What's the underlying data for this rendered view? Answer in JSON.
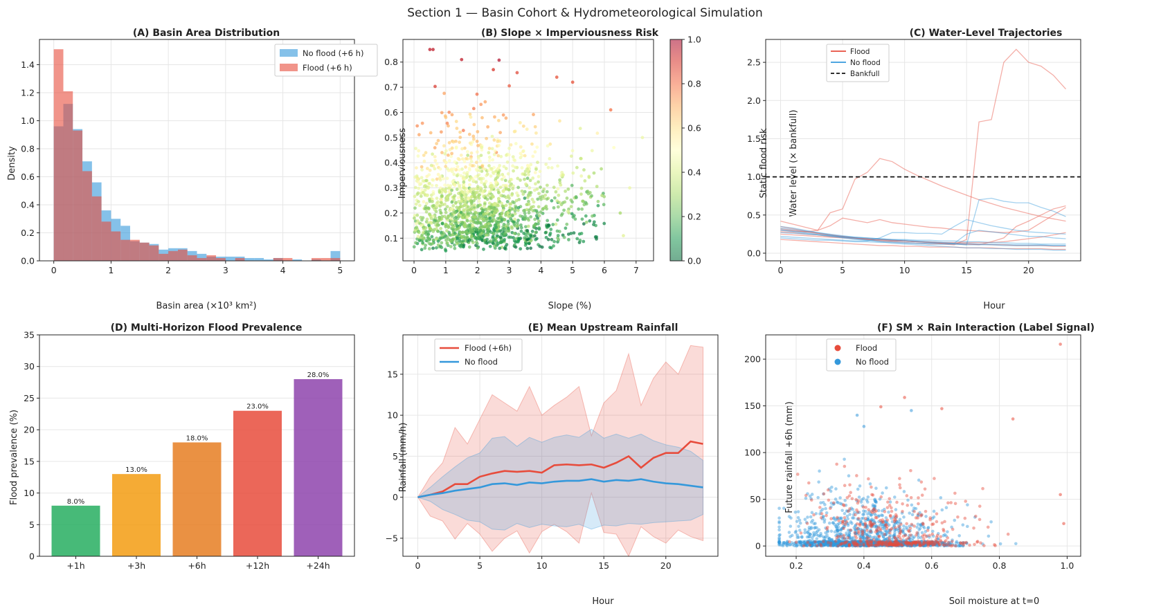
{
  "suptitle": "Section 1 — Basin Cohort & Hydrometeorological Simulation",
  "colors": {
    "no_flood": "#3498db",
    "flood": "#e74c3c",
    "bankfull": "#111111",
    "grid": "#e6e6e6"
  },
  "chart_data": [
    {
      "id": "A",
      "type": "bar",
      "subtype": "histogram",
      "title": "(A) Basin Area Distribution",
      "xlabel": "Basin area (×10³ km²)",
      "ylabel": "Density",
      "xlim": [
        -0.25,
        5.25
      ],
      "ylim": [
        0,
        1.58
      ],
      "xticks": [
        "0",
        "1",
        "2",
        "3",
        "4",
        "5"
      ],
      "yticks": [
        "0.0",
        "0.2",
        "0.4",
        "0.6",
        "0.8",
        "1.0",
        "1.2",
        "1.4"
      ],
      "legend_position": "top-right",
      "bin_edges": [
        0,
        0.167,
        0.333,
        0.5,
        0.667,
        0.833,
        1.0,
        1.167,
        1.333,
        1.5,
        1.667,
        1.833,
        2.0,
        2.167,
        2.333,
        2.5,
        2.667,
        2.833,
        3.0,
        3.167,
        3.333,
        3.5,
        3.667,
        3.833,
        4.0,
        4.167,
        4.333,
        4.5,
        4.667,
        4.833,
        5.0
      ],
      "series": [
        {
          "name": "No flood (+6 h)",
          "values": [
            0.96,
            1.12,
            0.94,
            0.71,
            0.56,
            0.36,
            0.3,
            0.25,
            0.14,
            0.13,
            0.12,
            0.08,
            0.09,
            0.09,
            0.07,
            0.05,
            0.03,
            0.03,
            0.03,
            0.03,
            0.02,
            0.02,
            0.01,
            0.02,
            0.0,
            0.01,
            0.0,
            0.01,
            0.0,
            0.07
          ]
        },
        {
          "name": "Flood (+6 h)",
          "values": [
            1.51,
            1.21,
            0.93,
            0.64,
            0.46,
            0.28,
            0.21,
            0.15,
            0.15,
            0.13,
            0.11,
            0.05,
            0.07,
            0.08,
            0.04,
            0.02,
            0.04,
            0.02,
            0.0,
            0.02,
            0.0,
            0.0,
            0.0,
            0.02,
            0.02,
            0.0,
            0.0,
            0.02,
            0.02,
            0.02
          ]
        }
      ]
    },
    {
      "id": "B",
      "type": "scatter",
      "title": "(B) Slope × Imperviousness Risk",
      "xlabel": "Slope (%)",
      "ylabel": "Imperviousness",
      "colorbar_label": "Static flood risk",
      "colormap": "RdYlGn_r",
      "xlim": [
        -0.35,
        7.55
      ],
      "ylim": [
        0.01,
        0.89
      ],
      "clim": [
        0,
        1
      ],
      "xticks": [
        "0",
        "1",
        "2",
        "3",
        "4",
        "5",
        "6",
        "7"
      ],
      "yticks": [
        "0.1",
        "0.2",
        "0.3",
        "0.4",
        "0.5",
        "0.6",
        "0.7",
        "0.8"
      ],
      "colorbar_ticks": [
        "0.0",
        "0.2",
        "0.4",
        "0.6",
        "0.8",
        "1.0"
      ],
      "n_points": 1600,
      "points_sample": [
        {
          "x": 0.5,
          "y": 0.85,
          "risk": 0.95
        },
        {
          "x": 0.6,
          "y": 0.85,
          "risk": 0.95
        },
        {
          "x": 1.5,
          "y": 0.81,
          "risk": 0.95
        },
        {
          "x": 2.5,
          "y": 0.77,
          "risk": 0.9
        },
        {
          "x": 4.5,
          "y": 0.74,
          "risk": 0.85
        },
        {
          "x": 5.0,
          "y": 0.72,
          "risk": 0.85
        },
        {
          "x": 6.2,
          "y": 0.61,
          "risk": 0.8
        },
        {
          "x": 6.3,
          "y": 0.46,
          "risk": 0.5
        },
        {
          "x": 6.5,
          "y": 0.2,
          "risk": 0.3
        },
        {
          "x": 6.8,
          "y": 0.3,
          "risk": 0.45
        },
        {
          "x": 7.2,
          "y": 0.5,
          "risk": 0.45
        },
        {
          "x": 6.6,
          "y": 0.11,
          "risk": 0.42
        },
        {
          "x": 1.0,
          "y": 0.05,
          "risk": 0.1
        }
      ]
    },
    {
      "id": "C",
      "type": "line",
      "title": "(C) Water-Level Trajectories",
      "xlabel": "Hour",
      "ylabel": "Water level (× bankfull)",
      "xlim": [
        -1.2,
        24.2
      ],
      "ylim": [
        -0.1,
        2.8
      ],
      "xticks": [
        "0",
        "5",
        "10",
        "15",
        "20"
      ],
      "yticks": [
        "0.0",
        "0.5",
        "1.0",
        "1.5",
        "2.0",
        "2.5"
      ],
      "bankfull": 1.0,
      "legend_position": "top-left",
      "legend": [
        "Flood",
        "No flood",
        "Bankfull"
      ],
      "x": [
        0,
        1,
        2,
        3,
        4,
        5,
        6,
        7,
        8,
        9,
        10,
        11,
        12,
        13,
        14,
        15,
        16,
        17,
        18,
        19,
        20,
        21,
        22,
        23
      ],
      "series": [
        {
          "group": "flood",
          "values": [
            0.42,
            0.38,
            0.34,
            0.3,
            0.53,
            0.58,
            0.97,
            1.06,
            1.24,
            1.2,
            1.1,
            1.02,
            0.95,
            0.88,
            0.82,
            0.76,
            0.7,
            0.65,
            0.6,
            0.56,
            0.52,
            0.48,
            0.45,
            0.42
          ]
        },
        {
          "group": "flood",
          "values": [
            0.35,
            0.32,
            0.29,
            0.26,
            0.24,
            0.22,
            0.2,
            0.18,
            0.16,
            0.15,
            0.14,
            0.13,
            0.12,
            0.12,
            0.11,
            0.18,
            1.72,
            1.75,
            2.5,
            2.67,
            2.5,
            2.45,
            2.33,
            2.15
          ]
        },
        {
          "group": "flood",
          "values": [
            0.3,
            0.29,
            0.28,
            0.3,
            0.36,
            0.46,
            0.43,
            0.4,
            0.44,
            0.4,
            0.38,
            0.36,
            0.34,
            0.33,
            0.31,
            0.3,
            0.29,
            0.28,
            0.27,
            0.28,
            0.3,
            0.4,
            0.5,
            0.6
          ]
        },
        {
          "group": "flood",
          "values": [
            0.32,
            0.3,
            0.28,
            0.26,
            0.24,
            0.22,
            0.2,
            0.19,
            0.18,
            0.17,
            0.16,
            0.15,
            0.14,
            0.13,
            0.12,
            0.12,
            0.11,
            0.15,
            0.2,
            0.35,
            0.42,
            0.5,
            0.58,
            0.62
          ]
        },
        {
          "group": "flood",
          "values": [
            0.28,
            0.27,
            0.25,
            0.24,
            0.22,
            0.21,
            0.2,
            0.19,
            0.18,
            0.17,
            0.16,
            0.15,
            0.14,
            0.13,
            0.13,
            0.12,
            0.12,
            0.11,
            0.11,
            0.1,
            0.1,
            0.1,
            0.09,
            0.09
          ]
        },
        {
          "group": "flood",
          "values": [
            0.18,
            0.17,
            0.16,
            0.15,
            0.14,
            0.13,
            0.12,
            0.11,
            0.1,
            0.1,
            0.09,
            0.09,
            0.08,
            0.08,
            0.08,
            0.07,
            0.07,
            0.07,
            0.06,
            0.06,
            0.06,
            0.06,
            0.05,
            0.05
          ]
        },
        {
          "group": "flood",
          "values": [
            0.25,
            0.24,
            0.23,
            0.22,
            0.21,
            0.2,
            0.19,
            0.18,
            0.17,
            0.16,
            0.16,
            0.15,
            0.15,
            0.14,
            0.14,
            0.14,
            0.14,
            0.14,
            0.15,
            0.17,
            0.19,
            0.21,
            0.24,
            0.27
          ]
        },
        {
          "group": "no_flood",
          "values": [
            0.3,
            0.28,
            0.26,
            0.24,
            0.22,
            0.2,
            0.18,
            0.17,
            0.16,
            0.15,
            0.14,
            0.13,
            0.13,
            0.12,
            0.12,
            0.11,
            0.7,
            0.72,
            0.68,
            0.66,
            0.66,
            0.6,
            0.55,
            0.48
          ]
        },
        {
          "group": "no_flood",
          "values": [
            0.22,
            0.21,
            0.2,
            0.19,
            0.18,
            0.17,
            0.16,
            0.16,
            0.2,
            0.27,
            0.27,
            0.26,
            0.26,
            0.25,
            0.35,
            0.44,
            0.4,
            0.36,
            0.33,
            0.3,
            0.28,
            0.27,
            0.26,
            0.25
          ]
        },
        {
          "group": "no_flood",
          "values": [
            0.33,
            0.31,
            0.29,
            0.27,
            0.25,
            0.23,
            0.21,
            0.2,
            0.19,
            0.18,
            0.17,
            0.16,
            0.15,
            0.14,
            0.13,
            0.25,
            0.3,
            0.28,
            0.26,
            0.24,
            0.22,
            0.22,
            0.2,
            0.19
          ]
        },
        {
          "group": "no_flood",
          "values": [
            0.27,
            0.26,
            0.25,
            0.24,
            0.23,
            0.22,
            0.21,
            0.2,
            0.19,
            0.18,
            0.18,
            0.17,
            0.17,
            0.16,
            0.16,
            0.15,
            0.15,
            0.14,
            0.14,
            0.13,
            0.13,
            0.12,
            0.12,
            0.12
          ]
        },
        {
          "group": "no_flood",
          "values": [
            0.35,
            0.33,
            0.3,
            0.27,
            0.24,
            0.21,
            0.19,
            0.17,
            0.15,
            0.13,
            0.12,
            0.11,
            0.1,
            0.09,
            0.08,
            0.07,
            0.07,
            0.06,
            0.06,
            0.05,
            0.05,
            0.05,
            0.04,
            0.04
          ]
        },
        {
          "group": "no_flood",
          "values": [
            0.2,
            0.19,
            0.18,
            0.17,
            0.17,
            0.16,
            0.15,
            0.15,
            0.14,
            0.14,
            0.13,
            0.13,
            0.12,
            0.12,
            0.12,
            0.11,
            0.11,
            0.11,
            0.1,
            0.1,
            0.1,
            0.1,
            0.1,
            0.1
          ]
        },
        {
          "group": "no_flood",
          "values": [
            0.31,
            0.29,
            0.27,
            0.25,
            0.23,
            0.21,
            0.2,
            0.19,
            0.18,
            0.17,
            0.16,
            0.15,
            0.14,
            0.14,
            0.13,
            0.13,
            0.12,
            0.12,
            0.12,
            0.11,
            0.11,
            0.11,
            0.1,
            0.1
          ]
        }
      ]
    },
    {
      "id": "D",
      "type": "bar",
      "title": "(D) Multi-Horizon Flood Prevalence",
      "ylabel": "Flood prevalence (%)",
      "ylim": [
        0,
        35
      ],
      "yticks": [
        "0",
        "5",
        "10",
        "15",
        "20",
        "25",
        "30",
        "35"
      ],
      "categories": [
        "+1h",
        "+3h",
        "+6h",
        "+12h",
        "+24h"
      ],
      "values": [
        8.0,
        13.0,
        18.0,
        23.0,
        28.0
      ],
      "value_labels": [
        "8.0%",
        "13.0%",
        "18.0%",
        "23.0%",
        "28.0%"
      ],
      "bar_colors": [
        "#27ae60",
        "#f39c12",
        "#e67e22",
        "#e74c3c",
        "#8e44ad"
      ]
    },
    {
      "id": "E",
      "type": "line",
      "title": "(E) Mean Upstream Rainfall",
      "xlabel": "Hour",
      "ylabel": "Rainfall (mm/h)",
      "xlim": [
        -1.2,
        24.2
      ],
      "ylim": [
        -7.2,
        19.8
      ],
      "xticks": [
        "0",
        "5",
        "10",
        "15",
        "20"
      ],
      "yticks": [
        "−5",
        "0",
        "5",
        "10",
        "15"
      ],
      "legend_position": "top-left",
      "x": [
        0,
        1,
        2,
        3,
        4,
        5,
        6,
        7,
        8,
        9,
        10,
        11,
        12,
        13,
        14,
        15,
        16,
        17,
        18,
        19,
        20,
        21,
        22,
        23
      ],
      "series": [
        {
          "name": "Flood (+6h)",
          "values": [
            0,
            0.3,
            0.7,
            1.6,
            1.6,
            2.5,
            2.9,
            3.2,
            3.1,
            3.2,
            3.0,
            3.9,
            4.0,
            3.9,
            4.0,
            3.6,
            4.2,
            5.0,
            3.6,
            4.8,
            5.4,
            5.4,
            6.8,
            6.5
          ],
          "upper": [
            0,
            2.5,
            4.2,
            8.5,
            6.5,
            9.5,
            12.5,
            11.5,
            10.5,
            13.5,
            10.0,
            11.2,
            12.2,
            13.5,
            7.5,
            11.5,
            13.0,
            17.5,
            11.2,
            14.5,
            16.5,
            15.0,
            18.5,
            18.3
          ],
          "lower": [
            0,
            -2.3,
            -2.9,
            -5.1,
            -3.2,
            -4.5,
            -6.6,
            -5.0,
            -4.1,
            -6.8,
            -4.2,
            -3.3,
            -4.2,
            -5.6,
            0.5,
            -4.3,
            -4.5,
            -7.2,
            -3.6,
            -4.8,
            -5.6,
            -4.0,
            -4.8,
            -5.3
          ]
        },
        {
          "name": "No flood",
          "values": [
            0,
            0.3,
            0.5,
            0.8,
            1.0,
            1.2,
            1.6,
            1.7,
            1.5,
            1.8,
            1.7,
            1.9,
            2.0,
            2.0,
            2.2,
            1.9,
            2.1,
            2.0,
            2.2,
            1.9,
            1.7,
            1.6,
            1.4,
            1.2
          ],
          "upper": [
            0,
            1.2,
            2.5,
            3.7,
            4.8,
            5.4,
            7.2,
            7.4,
            6.2,
            7.3,
            6.7,
            7.3,
            7.6,
            7.3,
            8.3,
            7.2,
            7.7,
            7.2,
            7.7,
            6.9,
            6.4,
            6.1,
            5.6,
            4.5
          ],
          "lower": [
            0,
            -0.5,
            -1.5,
            -2.1,
            -2.8,
            -3.0,
            -3.9,
            -4.0,
            -3.2,
            -3.7,
            -3.3,
            -3.5,
            -3.6,
            -3.3,
            -3.9,
            -3.4,
            -3.5,
            -3.2,
            -3.3,
            -3.1,
            -3.0,
            -2.9,
            -2.8,
            -2.1
          ]
        }
      ]
    },
    {
      "id": "F",
      "type": "scatter",
      "title": "(F) SM × Rain Interaction (Label Signal)",
      "xlabel": "Soil moisture at t=0",
      "ylabel": "Future rainfall +6h (mm)",
      "xlim": [
        0.11,
        1.04
      ],
      "ylim": [
        -11,
        226
      ],
      "xticks": [
        "0.2",
        "0.4",
        "0.6",
        "0.8",
        "1.0"
      ],
      "yticks": [
        "0",
        "50",
        "100",
        "150",
        "200"
      ],
      "legend_position": "top-left",
      "legend": [
        "Flood",
        "No flood"
      ],
      "n_points": 2000,
      "points_sample": [
        {
          "x": 0.98,
          "y": 216,
          "label": "flood"
        },
        {
          "x": 0.52,
          "y": 159,
          "label": "flood"
        },
        {
          "x": 0.45,
          "y": 149,
          "label": "flood"
        },
        {
          "x": 0.63,
          "y": 147,
          "label": "flood"
        },
        {
          "x": 0.54,
          "y": 145,
          "label": "no_flood"
        },
        {
          "x": 0.38,
          "y": 140,
          "label": "no_flood"
        },
        {
          "x": 0.84,
          "y": 136,
          "label": "flood"
        },
        {
          "x": 0.4,
          "y": 128,
          "label": "no_flood"
        },
        {
          "x": 0.98,
          "y": 55,
          "label": "flood"
        },
        {
          "x": 0.99,
          "y": 24,
          "label": "flood"
        }
      ]
    }
  ]
}
